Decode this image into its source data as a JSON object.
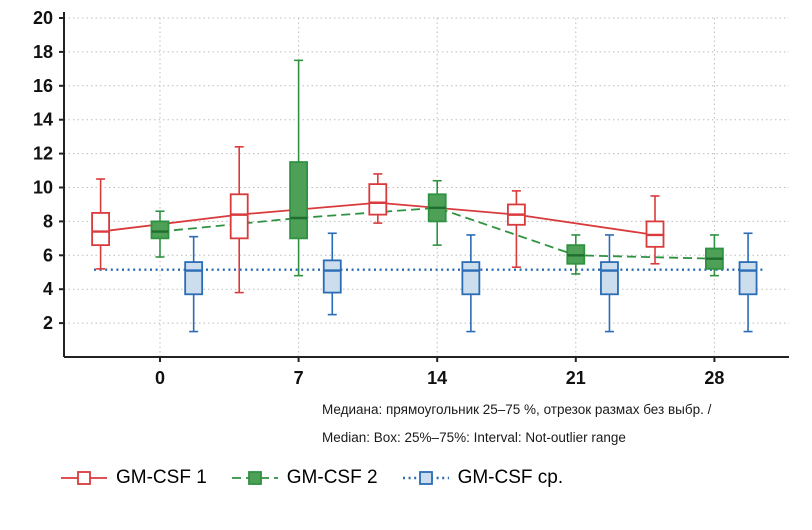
{
  "caption": {
    "line1": "Медиана: прямоугольник 25–75 %, отрезок размах без выбр. /",
    "line2": "Median: Box: 25%–75%: Interval: Not-outlier range"
  },
  "chart_data": {
    "type": "boxplot",
    "title": "",
    "xlabel": "",
    "ylabel": "",
    "x_ticks": [
      0,
      7,
      14,
      21,
      28
    ],
    "y_ticks": [
      2,
      4,
      6,
      8,
      10,
      12,
      14,
      16,
      18,
      20
    ],
    "ylim": [
      0,
      20
    ],
    "grid": true,
    "legend_position": "bottom-left",
    "series": [
      {
        "name": "GM-CSF 1",
        "color": "#d93a3c",
        "box_fill": "#ffffff",
        "line_dash": "solid",
        "offset_days": -3,
        "boxes": [
          {
            "day": 0,
            "low": 5.2,
            "q1": 6.6,
            "median": 7.4,
            "q3": 8.5,
            "high": 10.5
          },
          {
            "day": 7,
            "low": 3.8,
            "q1": 7.0,
            "median": 8.4,
            "q3": 9.6,
            "high": 12.4
          },
          {
            "day": 14,
            "low": 7.9,
            "q1": 8.4,
            "median": 9.1,
            "q3": 10.2,
            "high": 10.8
          },
          {
            "day": 21,
            "low": 5.3,
            "q1": 7.8,
            "median": 8.4,
            "q3": 9.0,
            "high": 9.8
          },
          {
            "day": 28,
            "low": 5.5,
            "q1": 6.5,
            "median": 7.2,
            "q3": 8.0,
            "high": 9.5
          }
        ]
      },
      {
        "name": "GM-CSF 2",
        "color": "#2f9241",
        "box_fill": "#4ea057",
        "median_color": "#1f6e2f",
        "line_dash": "dashed",
        "offset_days": 0,
        "boxes": [
          {
            "day": 0,
            "low": 5.9,
            "q1": 7.0,
            "median": 7.4,
            "q3": 8.0,
            "high": 8.6
          },
          {
            "day": 7,
            "low": 4.8,
            "q1": 7.0,
            "median": 8.2,
            "q3": 11.5,
            "high": 17.5
          },
          {
            "day": 14,
            "low": 6.6,
            "q1": 8.0,
            "median": 8.8,
            "q3": 9.6,
            "high": 10.4
          },
          {
            "day": 21,
            "low": 4.9,
            "q1": 5.5,
            "median": 6.0,
            "q3": 6.6,
            "high": 7.2
          },
          {
            "day": 28,
            "low": 4.8,
            "q1": 5.2,
            "median": 5.8,
            "q3": 6.4,
            "high": 7.2
          }
        ]
      },
      {
        "name": "GM-CSF ср.",
        "color": "#2a6cb5",
        "box_fill": "#ccdded",
        "line_dash": "dotted",
        "offset_days": 1.7,
        "flat_line_value": 5.15,
        "boxes": [
          {
            "day": 0,
            "low": 1.5,
            "q1": 3.7,
            "median": 5.1,
            "q3": 5.6,
            "high": 7.1
          },
          {
            "day": 7,
            "low": 2.5,
            "q1": 3.8,
            "median": 5.1,
            "q3": 5.7,
            "high": 7.3
          },
          {
            "day": 14,
            "low": 1.5,
            "q1": 3.7,
            "median": 5.1,
            "q3": 5.6,
            "high": 7.2
          },
          {
            "day": 21,
            "low": 1.5,
            "q1": 3.7,
            "median": 5.1,
            "q3": 5.6,
            "high": 7.2
          },
          {
            "day": 28,
            "low": 1.5,
            "q1": 3.7,
            "median": 5.1,
            "q3": 5.6,
            "high": 7.3
          }
        ]
      }
    ]
  }
}
